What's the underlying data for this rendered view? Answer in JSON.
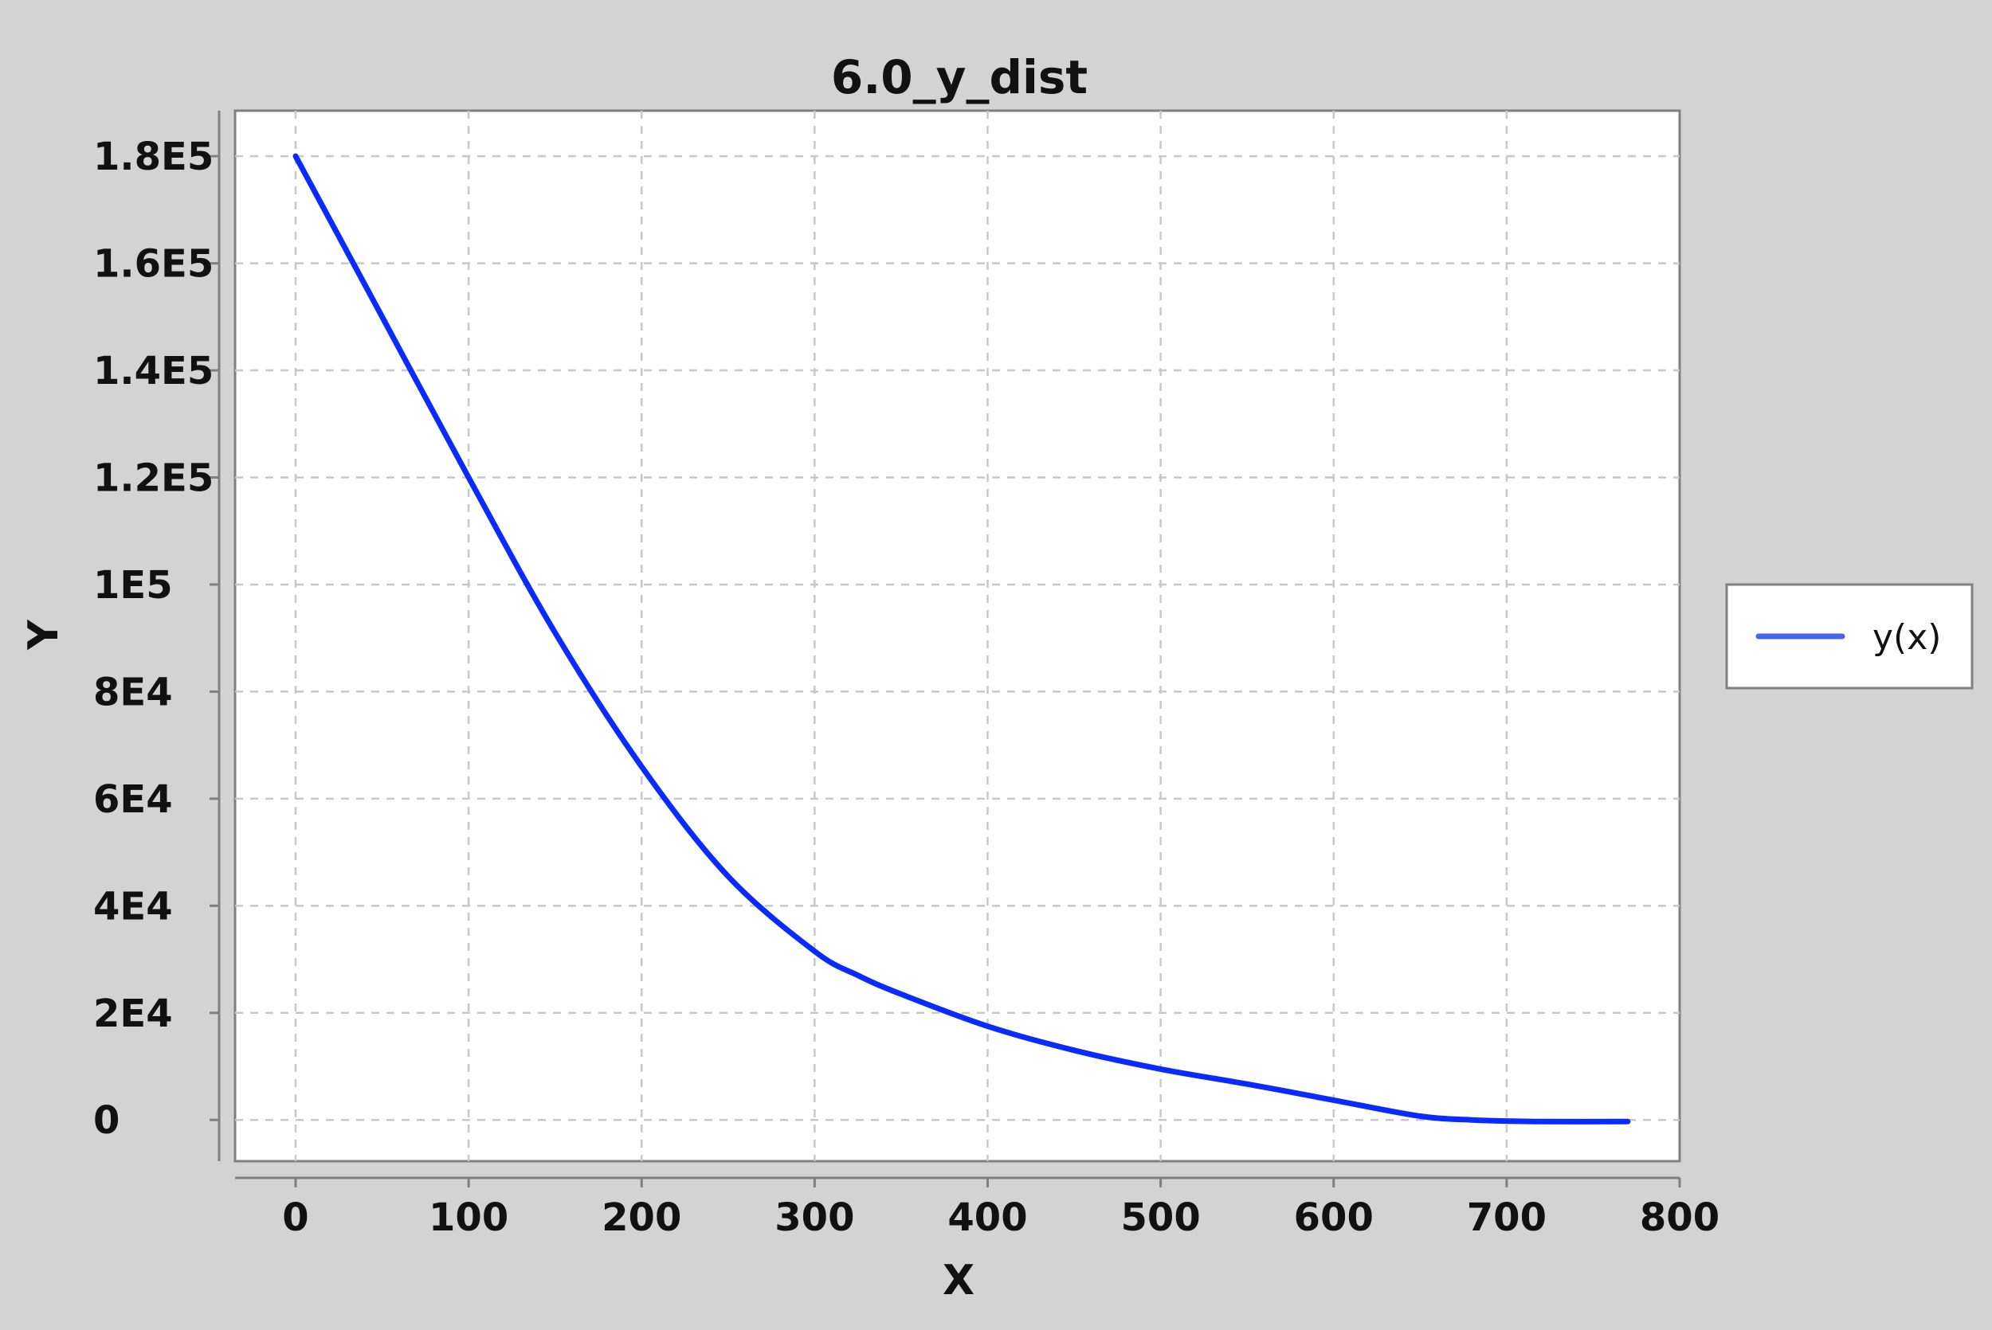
{
  "chart_data": {
    "type": "line",
    "title": "6.0_y_dist",
    "xlabel": "X",
    "ylabel": "Y",
    "xlim": [
      -35,
      800
    ],
    "ylim": [
      -7700,
      188500
    ],
    "x_ticks": [
      0,
      100,
      200,
      300,
      400,
      500,
      600,
      700,
      800
    ],
    "x_tick_labels": [
      "0",
      "100",
      "200",
      "300",
      "400",
      "500",
      "600",
      "700",
      "800"
    ],
    "y_ticks": [
      0,
      20000,
      40000,
      60000,
      80000,
      100000,
      120000,
      140000,
      160000,
      180000
    ],
    "y_tick_labels": [
      "0",
      "2E4",
      "4E4",
      "6E4",
      "8E4",
      "1E5",
      "1.2E5",
      "1.4E5",
      "1.6E5",
      "1.8E5"
    ],
    "grid": true,
    "legend_position": "right",
    "series": [
      {
        "name": "y(x)",
        "color": "#0a2bff",
        "legend_color": "#4466ee",
        "x": [
          0,
          50,
          100,
          150,
          200,
          250,
          300,
          325,
          350,
          400,
          450,
          500,
          550,
          600,
          650,
          680,
          700,
          720,
          770
        ],
        "y": [
          180000,
          150000,
          120000,
          91000,
          66000,
          45500,
          31500,
          27000,
          23500,
          17500,
          13000,
          9500,
          6700,
          3700,
          700,
          0,
          -200,
          -300,
          -300
        ]
      }
    ]
  }
}
